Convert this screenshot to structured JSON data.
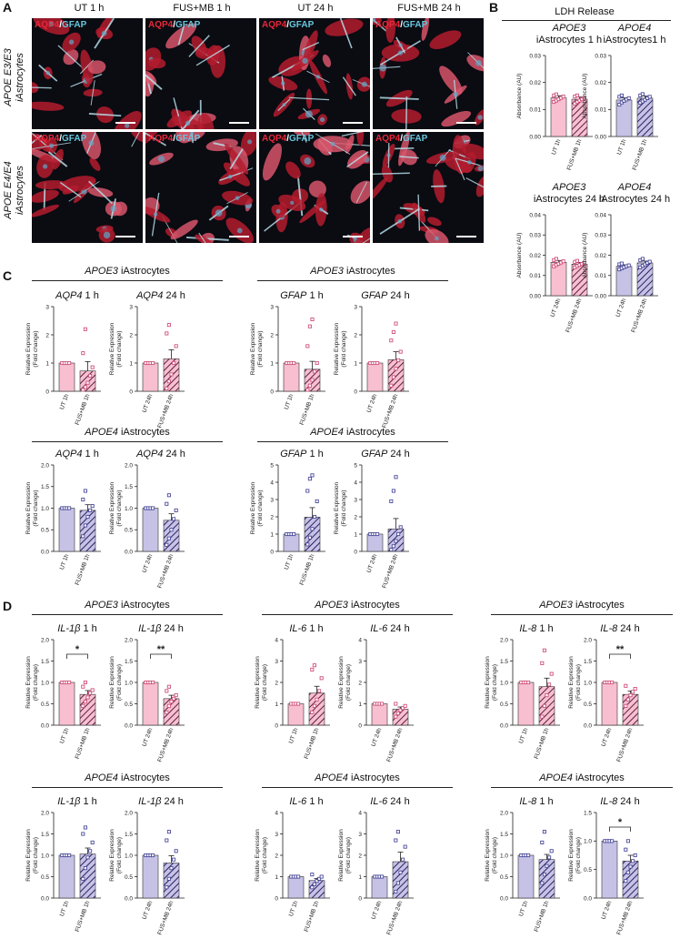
{
  "panel_a": {
    "label": "A",
    "columns": [
      "UT 1 h",
      "FUS+MB 1 h",
      "UT 24 h",
      "FUS+MB 24 h"
    ],
    "rows": [
      "APOE  E3/E3\niAstrocytes",
      "APOE  E4/E4\niAstrocytes"
    ],
    "stain_aqp": "AQP4",
    "stain_sep": "/",
    "stain_gfap": "GFAP"
  },
  "panel_b": {
    "label": "B",
    "title": "LDH Release"
  },
  "panel_c": {
    "label": "C",
    "sections": [
      {
        "gene": "APOE3",
        "suffix": " iAstrocytes"
      },
      {
        "gene": "APOE3",
        "suffix": " iAstrocytes"
      },
      {
        "gene": "APOE4",
        "suffix": " iAstrocytes"
      },
      {
        "gene": "APOE4",
        "suffix": " iAstrocytes"
      }
    ]
  },
  "panel_d": {
    "label": "D",
    "sections": [
      {
        "gene": "APOE3",
        "suffix": " iAstrocytes"
      },
      {
        "gene": "APOE3",
        "suffix": " iAstrocytes"
      },
      {
        "gene": "APOE3",
        "suffix": " iAstrocytes"
      },
      {
        "gene": "APOE4",
        "suffix": " iAstrocytes"
      },
      {
        "gene": "APOE4",
        "suffix": " iAstrocytes"
      },
      {
        "gene": "APOE4",
        "suffix": " iAstrocytes"
      }
    ]
  },
  "colors": {
    "apoe3_bar": "#f7bfd0",
    "apoe4_bar": "#c6c2e6",
    "apoe3_point": "#d0507a",
    "apoe4_point": "#4a4a9c",
    "hatch": "#5a2040"
  },
  "chart_data": [
    {
      "id": "B1",
      "type": "bar",
      "title_gene": "APOE3",
      "title_rest": "iAstrocytes 1 h",
      "ylabel": "Absorbance (AU)",
      "ylim": [
        0,
        0.03
      ],
      "yticks": [
        "0.00",
        "0.01",
        "0.02",
        "0.03"
      ],
      "categories": [
        "UT 1h",
        "FUS+MB 1h"
      ],
      "values": [
        0.0143,
        0.0138
      ],
      "errors": [
        0.0008,
        0.0008
      ],
      "points": [
        [
          0.0128,
          0.0133,
          0.0138,
          0.0143,
          0.0148,
          0.0152,
          0.0156
        ],
        [
          0.0122,
          0.0128,
          0.0133,
          0.0138,
          0.0143,
          0.0148,
          0.0152
        ]
      ],
      "genotype": "apoe3"
    },
    {
      "id": "B2",
      "type": "bar",
      "title_gene": "APOE4",
      "title_rest": "iAstrocytes1 h",
      "ylabel": "Absorbance (AU)",
      "ylim": [
        0,
        0.03
      ],
      "yticks": [
        "0.00",
        "0.01",
        "0.02",
        "0.03"
      ],
      "categories": [
        "UT 1h",
        "FUS+MB 1h"
      ],
      "values": [
        0.0135,
        0.0142
      ],
      "errors": [
        0.0008,
        0.0008
      ],
      "points": [
        [
          0.0118,
          0.0126,
          0.0132,
          0.0137,
          0.0142,
          0.0147,
          0.0152
        ],
        [
          0.0125,
          0.013,
          0.0136,
          0.0142,
          0.0147,
          0.0152,
          0.0157
        ]
      ],
      "genotype": "apoe4"
    },
    {
      "id": "B3",
      "type": "bar",
      "title_gene": "APOE3",
      "title_rest": "iAstrocytes 24 h",
      "ylabel": "Absorbance (AU)",
      "ylim": [
        0,
        0.04
      ],
      "yticks": [
        "0.00",
        "0.01",
        "0.02",
        "0.03",
        "0.04"
      ],
      "categories": [
        "UT 24h",
        "FUS+MB 24h"
      ],
      "values": [
        0.0165,
        0.0156
      ],
      "errors": [
        0.0009,
        0.0008
      ],
      "points": [
        [
          0.0145,
          0.0152,
          0.0158,
          0.0164,
          0.017,
          0.0176,
          0.0182
        ],
        [
          0.014,
          0.0147,
          0.0152,
          0.0157,
          0.0162,
          0.0167,
          0.0172
        ]
      ],
      "genotype": "apoe3"
    },
    {
      "id": "B4",
      "type": "bar",
      "title_gene": "APOE4",
      "title_rest": "iAstrocytes 24 h",
      "ylabel": "Absorbance (AU)",
      "ylim": [
        0,
        0.04
      ],
      "yticks": [
        "0.00",
        "0.01",
        "0.02",
        "0.03",
        "0.04"
      ],
      "categories": [
        "UT 24h",
        "FUS+MB 24h"
      ],
      "values": [
        0.0145,
        0.0162
      ],
      "errors": [
        0.0008,
        0.0009
      ],
      "points": [
        [
          0.013,
          0.0136,
          0.0141,
          0.0146,
          0.015,
          0.0155,
          0.0159
        ],
        [
          0.014,
          0.0148,
          0.0155,
          0.0162,
          0.0168,
          0.0175,
          0.0182
        ]
      ],
      "genotype": "apoe4"
    },
    {
      "id": "C1",
      "type": "bar",
      "title_gene": "AQP4",
      "title_rest": " 1 h",
      "ylabel": "Relative Expression\n(Fold change)",
      "ylim": [
        0,
        3
      ],
      "yticks": [
        "0",
        "1",
        "2",
        "3"
      ],
      "categories": [
        "UT 1h",
        "FUS+MB 1h"
      ],
      "values": [
        1.0,
        0.72
      ],
      "errors": [
        0,
        0.33
      ],
      "points": [
        [
          1,
          1,
          1,
          1
        ],
        [
          0.05,
          0.15,
          0.3,
          0.55,
          0.85,
          1.35,
          2.2
        ]
      ],
      "genotype": "apoe3"
    },
    {
      "id": "C2",
      "type": "bar",
      "title_gene": "AQP4",
      "title_rest": " 24 h",
      "ylabel": "Relative Expression\n(Fold change)",
      "ylim": [
        0,
        3
      ],
      "yticks": [
        "0",
        "1",
        "2",
        "3"
      ],
      "categories": [
        "UT 24h",
        "FUS+MB 24h"
      ],
      "values": [
        1.0,
        1.15
      ],
      "errors": [
        0,
        0.32
      ],
      "points": [
        [
          1,
          1,
          1,
          1
        ],
        [
          0.1,
          0.35,
          0.6,
          1.0,
          1.6,
          2.05,
          2.35
        ]
      ],
      "genotype": "apoe3"
    },
    {
      "id": "C3",
      "type": "bar",
      "title_gene": "GFAP",
      "title_rest": " 1 h",
      "ylabel": "Relative Expression\n(Fold change)",
      "ylim": [
        0,
        3
      ],
      "yticks": [
        "0",
        "1",
        "2",
        "3"
      ],
      "categories": [
        "UT 1h",
        "FUS+MB 1h"
      ],
      "values": [
        1.0,
        0.78
      ],
      "errors": [
        0,
        0.28
      ],
      "points": [
        [
          1,
          1,
          1,
          1
        ],
        [
          0.05,
          0.2,
          0.4,
          0.7,
          1.0,
          1.6,
          2.3,
          2.55
        ]
      ],
      "genotype": "apoe3"
    },
    {
      "id": "C4",
      "type": "bar",
      "title_gene": "GFAP",
      "title_rest": " 24 h",
      "ylabel": "Relative Expression\n(Fold change)",
      "ylim": [
        0,
        3
      ],
      "yticks": [
        "0",
        "1",
        "2",
        "3"
      ],
      "categories": [
        "UT 24h",
        "FUS+MB 24h"
      ],
      "values": [
        1.0,
        1.12
      ],
      "errors": [
        0,
        0.28
      ],
      "points": [
        [
          1,
          1,
          1,
          1
        ],
        [
          0.2,
          0.5,
          0.8,
          1.1,
          1.4,
          1.8,
          2.1,
          2.4
        ]
      ],
      "genotype": "apoe3"
    },
    {
      "id": "C5",
      "type": "bar",
      "title_gene": "AQP4",
      "title_rest": " 1 h",
      "ylabel": "Relative Expression\n(Fold change)",
      "ylim": [
        0,
        2.0
      ],
      "yticks": [
        "0.0",
        "0.5",
        "1.0",
        "1.5",
        "2.0"
      ],
      "categories": [
        "UT 1h",
        "FUS+MB 1h"
      ],
      "values": [
        1.0,
        0.95
      ],
      "errors": [
        0,
        0.13
      ],
      "points": [
        [
          1,
          1,
          1,
          1
        ],
        [
          0.35,
          0.6,
          0.8,
          0.95,
          1.05,
          1.2,
          1.4
        ]
      ],
      "genotype": "apoe4"
    },
    {
      "id": "C6",
      "type": "bar",
      "title_gene": "AQP4",
      "title_rest": " 24 h",
      "ylabel": "Relative Expression\n(Fold change)",
      "ylim": [
        0,
        2.0
      ],
      "yticks": [
        "0.0",
        "0.5",
        "1.0",
        "1.5",
        "2.0"
      ],
      "categories": [
        "UT 24h",
        "FUS+MB 24h"
      ],
      "values": [
        1.0,
        0.72
      ],
      "errors": [
        0,
        0.15
      ],
      "points": [
        [
          1,
          1,
          1,
          1
        ],
        [
          0.15,
          0.3,
          0.5,
          0.75,
          0.95,
          1.1,
          1.3
        ]
      ],
      "genotype": "apoe4"
    },
    {
      "id": "C7",
      "type": "bar",
      "title_gene": "GFAP",
      "title_rest": " 1 h",
      "ylabel": "Relative Expression\n(Fold change)",
      "ylim": [
        0,
        5
      ],
      "yticks": [
        "0",
        "1",
        "2",
        "3",
        "4",
        "5"
      ],
      "categories": [
        "UT 1h",
        "FUS+MB 1h"
      ],
      "values": [
        1.0,
        1.98
      ],
      "errors": [
        0,
        0.55
      ],
      "points": [
        [
          1,
          1,
          1,
          1
        ],
        [
          0.4,
          0.8,
          1.3,
          2.0,
          2.9,
          3.5,
          4.2,
          4.4
        ]
      ],
      "genotype": "apoe4"
    },
    {
      "id": "C8",
      "type": "bar",
      "title_gene": "GFAP",
      "title_rest": " 24 h",
      "ylabel": "Relative Expression\n(Fold change)",
      "ylim": [
        0,
        5
      ],
      "yticks": [
        "0",
        "1",
        "2",
        "3",
        "4",
        "5"
      ],
      "categories": [
        "UT 24h",
        "FUS+MB 24h"
      ],
      "values": [
        1.0,
        1.3
      ],
      "errors": [
        0,
        0.6
      ],
      "points": [
        [
          1,
          1,
          1,
          1
        ],
        [
          0.1,
          0.3,
          0.6,
          1.0,
          1.4,
          2.9,
          3.5,
          4.3
        ]
      ],
      "genotype": "apoe4"
    },
    {
      "id": "D1",
      "type": "bar",
      "title_gene": "IL-1β",
      "title_rest": " 1 h",
      "ylabel": "Relative Expression\n(Fold change)",
      "ylim": [
        0,
        2.0
      ],
      "yticks": [
        "0.0",
        "0.5",
        "1.0",
        "1.5",
        "2.0"
      ],
      "categories": [
        "UT 1h",
        "FUS+MB 1h"
      ],
      "values": [
        1.0,
        0.72
      ],
      "errors": [
        0,
        0.09
      ],
      "points": [
        [
          1,
          1,
          1,
          1
        ],
        [
          0.45,
          0.55,
          0.65,
          0.75,
          0.82,
          0.9,
          1.0
        ]
      ],
      "sig": "*",
      "genotype": "apoe3"
    },
    {
      "id": "D2",
      "type": "bar",
      "title_gene": "IL-1β",
      "title_rest": " 24 h",
      "ylabel": "Relative Expression\n(Fold change)",
      "ylim": [
        0,
        2.0
      ],
      "yticks": [
        "0.0",
        "0.5",
        "1.0",
        "1.5",
        "2.0"
      ],
      "categories": [
        "UT 24h",
        "FUS+MB 24h"
      ],
      "values": [
        1.0,
        0.62
      ],
      "errors": [
        0,
        0.08
      ],
      "points": [
        [
          1,
          1,
          1,
          1
        ],
        [
          0.3,
          0.45,
          0.55,
          0.62,
          0.7,
          0.8,
          0.9
        ]
      ],
      "sig": "**",
      "genotype": "apoe3"
    },
    {
      "id": "D3",
      "type": "bar",
      "title_gene": "IL-6",
      "title_rest": " 1 h",
      "ylabel": "Relative Expression\n(Fold change)",
      "ylim": [
        0,
        4
      ],
      "yticks": [
        "0",
        "1",
        "2",
        "3",
        "4"
      ],
      "categories": [
        "UT 1h",
        "FUS+MB 1h"
      ],
      "values": [
        1.0,
        1.5
      ],
      "errors": [
        0,
        0.32
      ],
      "points": [
        [
          1,
          1,
          1,
          1
        ],
        [
          0.6,
          0.9,
          1.2,
          1.6,
          2.2,
          2.6,
          2.8
        ]
      ],
      "genotype": "apoe3"
    },
    {
      "id": "D4",
      "type": "bar",
      "title_gene": "IL-6",
      "title_rest": " 24 h",
      "ylabel": "Relative Expression\n(Fold change)",
      "ylim": [
        0,
        4
      ],
      "yticks": [
        "0",
        "1",
        "2",
        "3",
        "4"
      ],
      "categories": [
        "UT 24h",
        "FUS+MB 24h"
      ],
      "values": [
        1.0,
        0.75
      ],
      "errors": [
        0,
        0.1
      ],
      "points": [
        [
          1,
          1,
          1,
          1
        ],
        [
          0.4,
          0.55,
          0.7,
          0.8,
          0.9,
          1.0
        ]
      ],
      "genotype": "apoe3"
    },
    {
      "id": "D5",
      "type": "bar",
      "title_gene": "IL-8",
      "title_rest": " 1 h",
      "ylabel": "Relative Expression\n(Fold change)",
      "ylim": [
        0,
        2.0
      ],
      "yticks": [
        "0.0",
        "0.5",
        "1.0",
        "1.5",
        "2.0"
      ],
      "categories": [
        "UT 1h",
        "FUS+MB 1h"
      ],
      "values": [
        1.0,
        0.9
      ],
      "errors": [
        0,
        0.2
      ],
      "points": [
        [
          1,
          1,
          1,
          1
        ],
        [
          0.2,
          0.45,
          0.7,
          0.95,
          1.2,
          1.45,
          1.75
        ]
      ],
      "genotype": "apoe3"
    },
    {
      "id": "D6",
      "type": "bar",
      "title_gene": "IL-8",
      "title_rest": " 24 h",
      "ylabel": "Relative Expression\n(Fold change)",
      "ylim": [
        0,
        2.0
      ],
      "yticks": [
        "0.0",
        "0.5",
        "1.0",
        "1.5",
        "2.0"
      ],
      "categories": [
        "UT 24h",
        "FUS+MB 24h"
      ],
      "values": [
        1.0,
        0.72
      ],
      "errors": [
        0,
        0.08
      ],
      "points": [
        [
          1,
          1,
          1,
          1
        ],
        [
          0.45,
          0.6,
          0.7,
          0.78,
          0.85,
          0.92
        ]
      ],
      "sig": "**",
      "genotype": "apoe3"
    },
    {
      "id": "D7",
      "type": "bar",
      "title_gene": "IL-1β",
      "title_rest": " 1 h",
      "ylabel": "Relative Expression\n(Fold change)",
      "ylim": [
        0,
        2.0
      ],
      "yticks": [
        "0.0",
        "0.5",
        "1.0",
        "1.5",
        "2.0"
      ],
      "categories": [
        "UT 1h",
        "FUS+MB 1h"
      ],
      "values": [
        1.0,
        1.03
      ],
      "errors": [
        0,
        0.14
      ],
      "points": [
        [
          1,
          1,
          1,
          1
        ],
        [
          0.45,
          0.7,
          0.95,
          1.1,
          1.3,
          1.5,
          1.65
        ]
      ],
      "genotype": "apoe4"
    },
    {
      "id": "D8",
      "type": "bar",
      "title_gene": "IL-1β",
      "title_rest": " 24 h",
      "ylabel": "Relative Expression\n(Fold change)",
      "ylim": [
        0,
        2.0
      ],
      "yticks": [
        "0.0",
        "0.5",
        "1.0",
        "1.5",
        "2.0"
      ],
      "categories": [
        "UT 24h",
        "FUS+MB 24h"
      ],
      "values": [
        1.0,
        0.82
      ],
      "errors": [
        0,
        0.17
      ],
      "points": [
        [
          1,
          1,
          1,
          1
        ],
        [
          0.25,
          0.45,
          0.7,
          0.9,
          1.1,
          1.35,
          1.55
        ]
      ],
      "genotype": "apoe4"
    },
    {
      "id": "D9",
      "type": "bar",
      "title_gene": "IL-6",
      "title_rest": " 1 h",
      "ylabel": "Relative Expression\n(Fold change)",
      "ylim": [
        0,
        4
      ],
      "yticks": [
        "0",
        "1",
        "2",
        "3",
        "4"
      ],
      "categories": [
        "UT 1h",
        "FUS+MB 1h"
      ],
      "values": [
        1.0,
        0.82
      ],
      "errors": [
        0,
        0.1
      ],
      "points": [
        [
          1,
          1,
          1,
          1
        ],
        [
          0.5,
          0.65,
          0.8,
          0.9,
          1.0,
          1.1
        ]
      ],
      "genotype": "apoe4"
    },
    {
      "id": "D10",
      "type": "bar",
      "title_gene": "IL-6",
      "title_rest": " 24 h",
      "ylabel": "Relative Expression\n(Fold change)",
      "ylim": [
        0,
        4
      ],
      "yticks": [
        "0",
        "1",
        "2",
        "3",
        "4"
      ],
      "categories": [
        "UT 24h",
        "FUS+MB 24h"
      ],
      "values": [
        1.0,
        1.7
      ],
      "errors": [
        0,
        0.45
      ],
      "points": [
        [
          1,
          1,
          1,
          1
        ],
        [
          0.3,
          0.7,
          1.2,
          1.8,
          2.4,
          2.7,
          3.1
        ]
      ],
      "genotype": "apoe4"
    },
    {
      "id": "D11",
      "type": "bar",
      "title_gene": "IL-8",
      "title_rest": " 1 h",
      "ylabel": "Relative Expression\n(Fold change)",
      "ylim": [
        0,
        2.0
      ],
      "yticks": [
        "0.0",
        "0.5",
        "1.0",
        "1.5",
        "2.0"
      ],
      "categories": [
        "UT 1h",
        "FUS+MB 1h"
      ],
      "values": [
        1.0,
        0.9
      ],
      "errors": [
        0,
        0.12
      ],
      "points": [
        [
          1,
          1,
          1,
          1
        ],
        [
          0.35,
          0.55,
          0.75,
          0.95,
          1.1,
          1.3,
          1.55
        ]
      ],
      "genotype": "apoe4"
    },
    {
      "id": "D12",
      "type": "bar",
      "title_gene": "IL-8",
      "title_rest": " 24 h",
      "ylabel": "Relative Expression\n(Fold change)",
      "ylim": [
        0,
        1.5
      ],
      "yticks": [
        "0.0",
        "0.5",
        "1.0",
        "1.5"
      ],
      "categories": [
        "UT 24h",
        "FUS+MB 24h"
      ],
      "values": [
        1.0,
        0.65
      ],
      "errors": [
        0,
        0.1
      ],
      "points": [
        [
          1,
          1,
          1,
          1
        ],
        [
          0.3,
          0.45,
          0.55,
          0.65,
          0.75,
          0.85,
          1.0
        ]
      ],
      "sig": "*",
      "genotype": "apoe4"
    }
  ]
}
